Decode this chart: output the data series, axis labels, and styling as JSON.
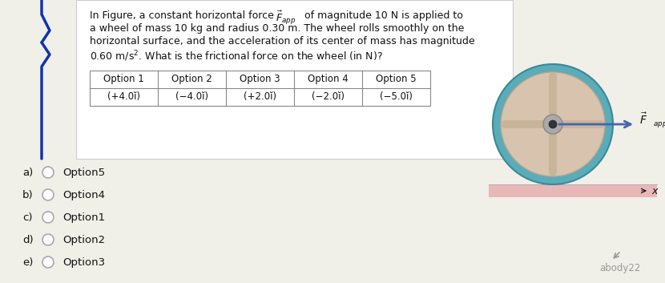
{
  "question_lines": [
    "In Figure, a constant horizontal force $\\vec{F}_{app}$ of magnitude 10 N is applied to",
    "a wheel of mass 10 kg and radius 0.30 m. The wheel rolls smoothly on the",
    "horizontal surface, and the acceleration of its center of mass has magnitude",
    "0.60 m/s$^2$. What is the frictional force on the wheel (in N)?"
  ],
  "table_headers": [
    "Option 1",
    "Option 2",
    "Option 3",
    "Option 4",
    "Option 5"
  ],
  "table_values": [
    "(+4.0$\\hat{\\imath}$)",
    "(−4.0$\\hat{\\imath}$)",
    "(+2.0$\\hat{\\imath}$)",
    "(−2.0$\\hat{\\imath}$)",
    "(−5.0$\\hat{\\imath}$)"
  ],
  "options": [
    {
      "label": "a)",
      "text": "Option5"
    },
    {
      "label": "b)",
      "text": "Option4"
    },
    {
      "label": "c)",
      "text": "Option1"
    },
    {
      "label": "d)",
      "text": "Option2"
    },
    {
      "label": "e)",
      "text": "Option3"
    }
  ],
  "bg_color": "#f0efe8",
  "question_bg": "#ffffff",
  "wheel_outer_color": "#5aacb8",
  "wheel_body_color": "#d8c4ae",
  "wheel_spoke_color": "#c8b498",
  "wheel_hub_color": "#888888",
  "ground_color": "#e8b8b8",
  "arrow_color": "#4466aa",
  "text_color": "#111111",
  "gray_text": "#aaaaaa",
  "watermark": "abody22",
  "left_decoration_color": "#1133aa"
}
